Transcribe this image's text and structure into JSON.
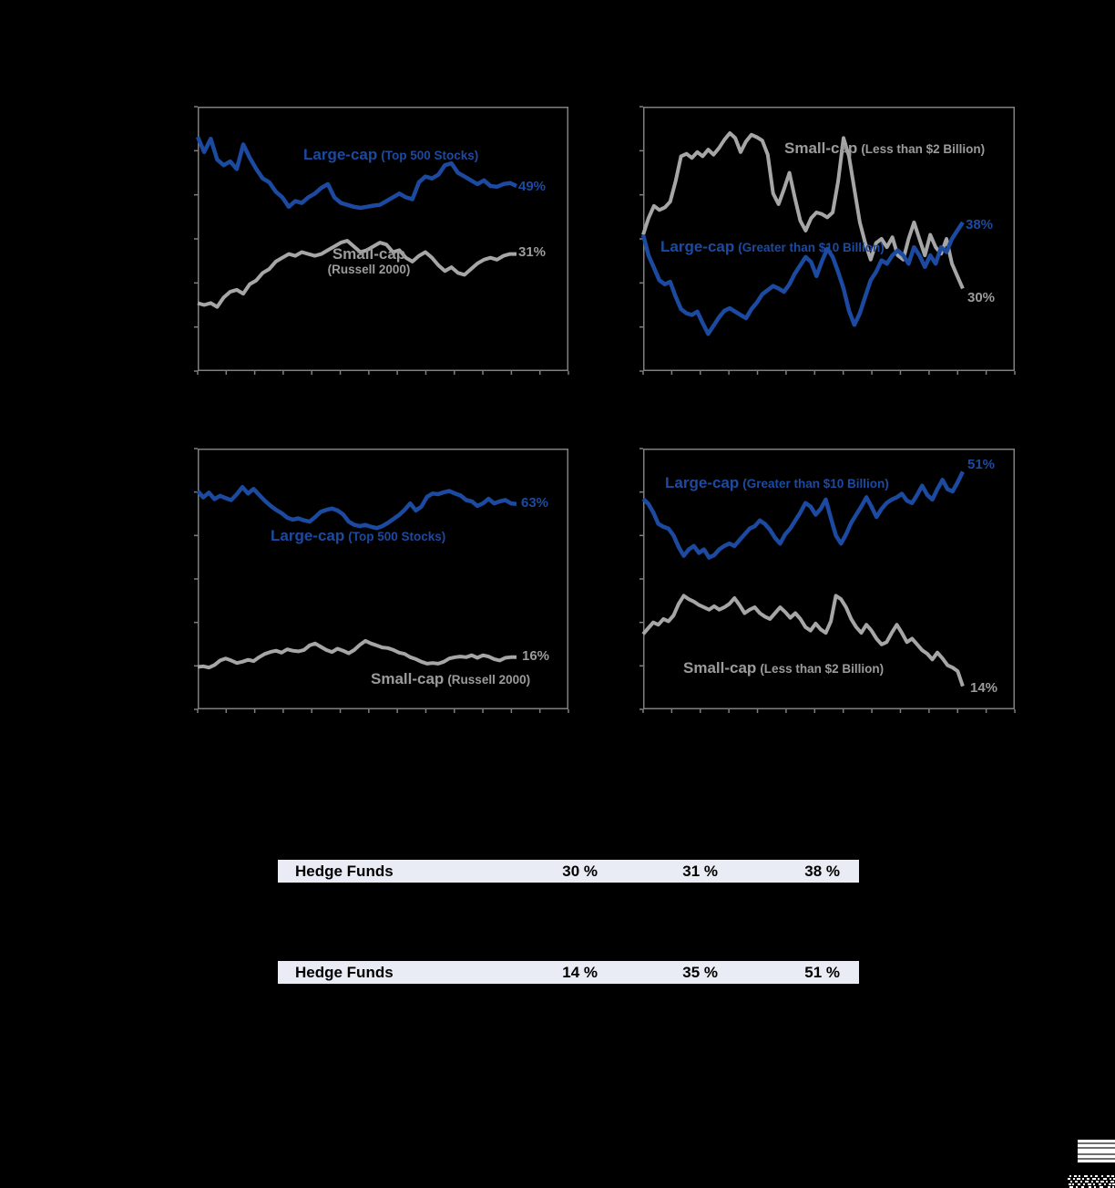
{
  "colors": {
    "page_background": "#000000",
    "large_cap_blue": "#1c4aa0",
    "small_cap_gray": "#a6a6a6",
    "gray_text": "#9b9b9b",
    "chart_frame_gray": "#7f7f7f",
    "table_row_bg": "#e9ecf5",
    "table_text": "#000000"
  },
  "decorations": {
    "stripes_logo": "striped-block-logo",
    "dither": "dither-noise-mark"
  },
  "chart_data": [
    {
      "position": "top-left",
      "type": "line",
      "ylim": [
        0,
        70
      ],
      "x_end_frac": 0.86,
      "x_tick_count": 13,
      "y_tick_count": 6,
      "frame_color": "#7f7f7f",
      "series": [
        {
          "name": "Small-cap (Russell 2000)",
          "label_main": "Small-cap",
          "label_paren": "(Russell 2000)",
          "color": "#a6a6a6",
          "stroke_width": 4,
          "end_label": "31%",
          "values": [
            18,
            17.5,
            18,
            17,
            19.5,
            21,
            21.5,
            20.5,
            23,
            24,
            26,
            27,
            29,
            30,
            31,
            30.5,
            31.5,
            31,
            30.5,
            31,
            32,
            33,
            34,
            34.5,
            33,
            31.5,
            32,
            33,
            34,
            33.5,
            31.5,
            32,
            30,
            29,
            30.5,
            31.5,
            30,
            28,
            26.5,
            27.5,
            26,
            25.5,
            27,
            28.5,
            29.5,
            30,
            29.5,
            30.5,
            31,
            31
          ]
        },
        {
          "name": "Large-cap (Top 500 Stocks)",
          "label_main": "Large-cap",
          "label_paren": "(Top 500 Stocks)",
          "color": "#1c4aa0",
          "stroke_width": 4.5,
          "end_label": "49%",
          "values": [
            62,
            58,
            61.5,
            56,
            54.5,
            55.5,
            53.5,
            60,
            56.5,
            53.5,
            51,
            50,
            47.5,
            46,
            43.5,
            45,
            44.5,
            46,
            47,
            48.5,
            49.5,
            46,
            44.5,
            44,
            43.5,
            43.2,
            43.5,
            43.8,
            44,
            45,
            46,
            47,
            46,
            45.5,
            50,
            51.5,
            51,
            52,
            54.5,
            55,
            52.5,
            51.5,
            50.5,
            49.5,
            50.5,
            49,
            48.8,
            49.5,
            49.8,
            49
          ]
        }
      ]
    },
    {
      "position": "top-right",
      "type": "line",
      "ylim": [
        20,
        52
      ],
      "x_end_frac": 0.86,
      "x_tick_count": 13,
      "y_tick_count": 6,
      "frame_color": "#7f7f7f",
      "series": [
        {
          "name": "Small-cap (Less than $2 Billion)",
          "label_main": "Small-cap",
          "label_paren": "(Less than $2 Billion)",
          "color": "#a6a6a6",
          "stroke_width": 4,
          "end_label": "30%",
          "values": [
            36.5,
            38.5,
            40,
            39.5,
            39.8,
            40.5,
            43,
            46,
            46.3,
            45.8,
            46.5,
            46,
            46.8,
            46.2,
            47,
            48,
            48.8,
            48.2,
            46.5,
            47.8,
            48.6,
            48.3,
            47.9,
            46.2,
            41.5,
            40.2,
            42,
            44,
            41,
            38.2,
            37,
            38.5,
            39.2,
            39,
            38.6,
            39.2,
            43,
            48.2,
            46,
            42,
            38,
            35.5,
            33.5,
            35.5,
            36,
            35,
            36.2,
            34,
            33.5,
            36,
            38,
            36,
            34,
            36.5,
            35,
            34.2,
            36,
            33,
            31.5,
            30
          ]
        },
        {
          "name": "Large-cap (Greater than $10 Billion)",
          "label_main": "Large-cap",
          "label_paren": "(Greater than $10 Billion)",
          "color": "#1c4aa0",
          "stroke_width": 4.5,
          "end_label": "38%",
          "values": [
            36.5,
            34,
            32.5,
            31,
            30.5,
            30.8,
            29,
            27.5,
            27,
            26.8,
            27.2,
            25.8,
            24.5,
            25.5,
            26.5,
            27.3,
            27.6,
            27.2,
            26.8,
            26.4,
            27.5,
            28.3,
            29.3,
            29.8,
            30.3,
            30,
            29.6,
            30.5,
            31.8,
            32.8,
            33.8,
            33.2,
            31.5,
            33.3,
            34.8,
            33.8,
            32,
            30,
            27.3,
            25.6,
            27,
            29,
            31,
            32,
            33.4,
            33,
            34,
            34.6,
            34,
            33,
            35,
            34,
            32.6,
            34,
            33,
            35,
            34.4,
            36,
            37,
            38
          ]
        }
      ]
    },
    {
      "position": "bottom-left",
      "type": "line",
      "ylim": [
        0,
        80
      ],
      "x_end_frac": 0.86,
      "x_tick_count": 13,
      "y_tick_count": 6,
      "frame_color": "#7f7f7f",
      "series": [
        {
          "name": "Small-cap (Russell 2000)",
          "label_main": "Small-cap",
          "label_paren": "(Russell 2000)",
          "color": "#a6a6a6",
          "stroke_width": 4,
          "end_label": "16%",
          "values": [
            13,
            13.2,
            12.8,
            13.6,
            15,
            15.6,
            15,
            14.2,
            14.6,
            15.2,
            14.8,
            16,
            17,
            17.6,
            18,
            17.4,
            18.4,
            18,
            17.8,
            18.2,
            19.6,
            20.2,
            19.2,
            18.2,
            17.6,
            18.6,
            18,
            17.2,
            18.2,
            19.8,
            21,
            20.2,
            19.6,
            19,
            18.8,
            18.2,
            17.4,
            17,
            16,
            15.4,
            14.6,
            14,
            14.2,
            14,
            14.6,
            15.6,
            16,
            16.2,
            16,
            16.6,
            15.8,
            16.6,
            16.2,
            15.4,
            15,
            15.8,
            16,
            16
          ]
        },
        {
          "name": "Large-cap (Top 500 Stocks)",
          "label_main": "Large-cap",
          "label_paren": "(Top 500 Stocks)",
          "color": "#1c4aa0",
          "stroke_width": 4.5,
          "end_label": "63%",
          "values": [
            67,
            65,
            66.5,
            64.5,
            65.5,
            64.8,
            64.2,
            66,
            68.2,
            66.2,
            67.6,
            65.8,
            64,
            62.5,
            61.2,
            60.2,
            58.8,
            58.2,
            58.6,
            58,
            57.6,
            59,
            60.6,
            61.2,
            61.6,
            61,
            59.8,
            57.6,
            56.6,
            56.2,
            56.6,
            56,
            55.6,
            56.2,
            57.2,
            58.4,
            59.6,
            61.2,
            63.2,
            61,
            62.2,
            65.2,
            66.2,
            66,
            66.6,
            67,
            66.2,
            65.6,
            64.2,
            63.8,
            62.4,
            63.2,
            64.6,
            63.2,
            63.8,
            64.2,
            63.2,
            63
          ]
        }
      ]
    },
    {
      "position": "bottom-right",
      "type": "line",
      "ylim": [
        10,
        55
      ],
      "x_end_frac": 0.86,
      "x_tick_count": 13,
      "y_tick_count": 6,
      "frame_color": "#7f7f7f",
      "series": [
        {
          "name": "Small-cap (Less than $2 Billion)",
          "label_main": "Small-cap",
          "label_paren": "(Less than $2 Billion)",
          "color": "#a6a6a6",
          "stroke_width": 4,
          "end_label": "14%",
          "values": [
            23,
            24,
            25,
            24.6,
            25.6,
            25.2,
            26.2,
            28.2,
            29.6,
            29,
            28.6,
            28,
            27.6,
            27.2,
            27.8,
            27.2,
            27.6,
            28.2,
            29.2,
            28,
            26.6,
            27.2,
            27.6,
            26.6,
            26,
            25.6,
            26.6,
            27.6,
            26.8,
            25.8,
            26.6,
            25.6,
            24.2,
            23.6,
            24.8,
            23.8,
            23.2,
            25.2,
            29.6,
            29,
            27.6,
            25.6,
            24.2,
            23.2,
            24.6,
            23.6,
            22.2,
            21.2,
            21.6,
            23.2,
            24.6,
            23.2,
            21.6,
            22.2,
            21.2,
            20.2,
            19.6,
            18.6,
            19.8,
            18.8,
            17.6,
            17.2,
            16.6,
            14
          ]
        },
        {
          "name": "Large-cap (Greater than $10 Billion)",
          "label_main": "Large-cap",
          "label_paren": "(Greater than $10 Billion)",
          "color": "#1c4aa0",
          "stroke_width": 4.5,
          "end_label": "51%",
          "values": [
            46.3,
            45.5,
            44,
            42,
            41.5,
            41.2,
            40,
            38,
            36.5,
            37.6,
            38.2,
            37,
            37.6,
            36.2,
            36.6,
            37.6,
            38.2,
            38.6,
            38.2,
            39.2,
            40.2,
            41.2,
            41.6,
            42.6,
            42,
            41,
            39.6,
            38.6,
            40.2,
            41.2,
            42.6,
            44,
            45.6,
            45,
            43.6,
            44.6,
            46.2,
            43,
            40,
            38.6,
            40.2,
            42.2,
            43.6,
            45,
            46.6,
            45,
            43.2,
            44.6,
            45.6,
            46.2,
            46.6,
            47.2,
            46,
            45.6,
            47,
            48.6,
            47,
            46.2,
            48,
            49.6,
            48,
            47.6,
            49.2,
            51
          ]
        }
      ]
    }
  ],
  "table": {
    "rows": [
      {
        "label": "Hedge Funds",
        "values": [
          "30 %",
          "31 %",
          "38 %"
        ]
      },
      {
        "label": "Hedge Funds",
        "values": [
          "14 %",
          "35 %",
          "51 %"
        ]
      }
    ]
  }
}
